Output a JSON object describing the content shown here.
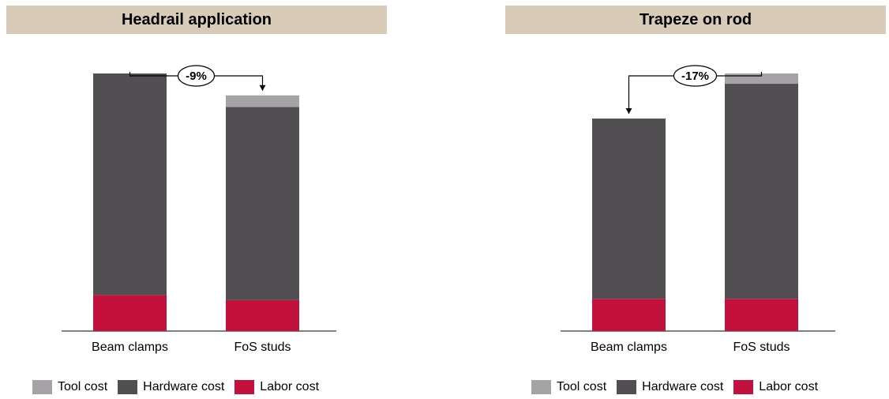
{
  "colors": {
    "title_bg": "#d8cbb8",
    "tool": "#a6a3a7",
    "hardware": "#524f52",
    "labor": "#c3113e"
  },
  "chart_data": [
    {
      "type": "bar",
      "stacked": true,
      "title": "Headrail application",
      "categories": [
        "Beam clamps",
        "FoS studs"
      ],
      "series": [
        {
          "name": "Labor cost",
          "color": "#c3113e",
          "values": [
            14.0,
            12.0
          ]
        },
        {
          "name": "Hardware cost",
          "color": "#524f52",
          "values": [
            86.0,
            75.0
          ]
        },
        {
          "name": "Tool cost",
          "color": "#a6a3a7",
          "values": [
            0,
            4.5
          ]
        }
      ],
      "ylim": [
        0,
        100
      ],
      "callout": {
        "label": "-9%",
        "from": 0,
        "to": 1
      },
      "legend": {
        "position": "bottom",
        "items": [
          "Tool cost",
          "Hardware cost",
          "Labor cost"
        ]
      }
    },
    {
      "type": "bar",
      "stacked": true,
      "title": "Trapeze on rod",
      "categories": [
        "Beam clamps",
        "FoS studs"
      ],
      "series": [
        {
          "name": "Labor cost",
          "color": "#c3113e",
          "values": [
            12.5,
            12.5
          ]
        },
        {
          "name": "Hardware cost",
          "color": "#524f52",
          "values": [
            70.0,
            83.5
          ]
        },
        {
          "name": "Tool cost",
          "color": "#a6a3a7",
          "values": [
            0,
            4.0
          ]
        }
      ],
      "ylim": [
        0,
        100
      ],
      "callout": {
        "label": "-17%",
        "from": 1,
        "to": 0
      },
      "legend": {
        "position": "bottom",
        "items": [
          "Tool cost",
          "Hardware cost",
          "Labor cost"
        ]
      }
    }
  ]
}
